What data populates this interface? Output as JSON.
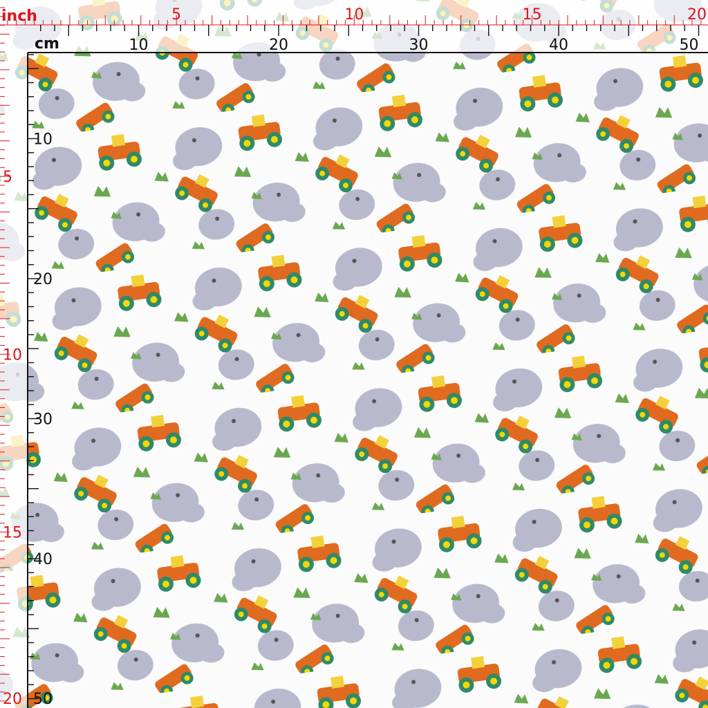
{
  "top_ruler": {
    "inch_label": "inch",
    "cm_label": "cm",
    "inch_marks": [
      5,
      10,
      15,
      20
    ],
    "cm_marks": [
      10,
      20,
      30,
      40,
      50
    ]
  },
  "left_ruler": {
    "inch_marks": [
      5,
      10,
      15,
      20
    ],
    "cm_marks": [
      10,
      20,
      30,
      40,
      50
    ]
  }
}
